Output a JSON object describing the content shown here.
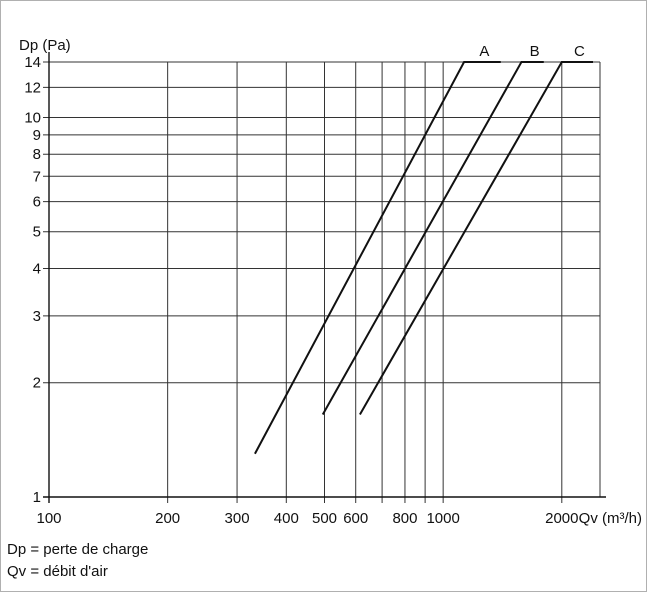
{
  "chart_data": {
    "type": "line",
    "x_scale": "log",
    "y_scale": "log",
    "xlim": [
      100,
      2500
    ],
    "ylim": [
      1,
      14
    ],
    "ylabel": "Dp (Pa)",
    "xlabel": "Qv (m³/h)",
    "x_gridlines": [
      100,
      200,
      300,
      400,
      500,
      600,
      700,
      800,
      900,
      1000,
      2000
    ],
    "x_ticklabels": [
      {
        "value": 100,
        "label": "100"
      },
      {
        "value": 200,
        "label": "200"
      },
      {
        "value": 300,
        "label": "300"
      },
      {
        "value": 400,
        "label": "400"
      },
      {
        "value": 500,
        "label": "500"
      },
      {
        "value": 600,
        "label": "600"
      },
      {
        "value": 800,
        "label": "800"
      },
      {
        "value": 1000,
        "label": "1000"
      },
      {
        "value": 2000,
        "label": "2000"
      }
    ],
    "y_gridlines": [
      2,
      3,
      4,
      5,
      6,
      7,
      8,
      9,
      10,
      12,
      14
    ],
    "y_ticklabels": [
      {
        "value": 1,
        "label": "1"
      },
      {
        "value": 2,
        "label": "2"
      },
      {
        "value": 3,
        "label": "3"
      },
      {
        "value": 4,
        "label": "4"
      },
      {
        "value": 5,
        "label": "5"
      },
      {
        "value": 6,
        "label": "6"
      },
      {
        "value": 7,
        "label": "7"
      },
      {
        "value": 8,
        "label": "8"
      },
      {
        "value": 9,
        "label": "9"
      },
      {
        "value": 10,
        "label": "10"
      },
      {
        "value": 12,
        "label": "12"
      },
      {
        "value": 14,
        "label": "14"
      }
    ],
    "series": [
      {
        "name": "A",
        "points": [
          [
            333,
            1.3
          ],
          [
            1130,
            14
          ]
        ],
        "flat_to_x": 1400,
        "color": "#111111"
      },
      {
        "name": "B",
        "points": [
          [
            495,
            1.65
          ],
          [
            1580,
            14
          ]
        ],
        "flat_to_x": 1800,
        "color": "#111111"
      },
      {
        "name": "C",
        "points": [
          [
            615,
            1.65
          ],
          [
            2000,
            14
          ]
        ],
        "flat_to_x": 2400,
        "color": "#111111"
      }
    ],
    "grid": true
  },
  "notes": {
    "dp": "Dp = perte de charge",
    "qv": "Qv = débit d'air"
  }
}
